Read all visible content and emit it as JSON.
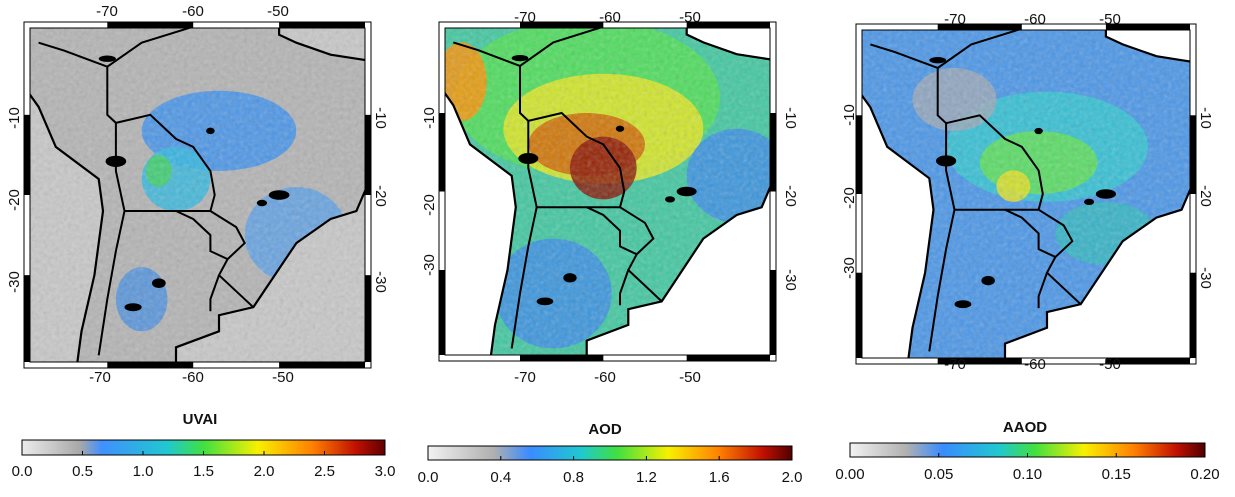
{
  "panels": [
    {
      "title": "UVAI",
      "lon_labels": [
        "-70",
        "-60",
        "-50"
      ],
      "lat_labels": [
        "-10",
        "-20",
        "-30"
      ],
      "colorbar_ticks": [
        "0.0",
        "0.5",
        "1.0",
        "1.5",
        "2.0",
        "2.5",
        "3.0"
      ]
    },
    {
      "title": "AOD",
      "lon_labels": [
        "-70",
        "-60",
        "-50"
      ],
      "lat_labels": [
        "-10",
        "-20",
        "-30"
      ],
      "colorbar_ticks": [
        "0.0",
        "0.4",
        "0.8",
        "1.2",
        "1.6",
        "2.0"
      ]
    },
    {
      "title": "AAOD",
      "lon_labels": [
        "-70",
        "-60",
        "-50"
      ],
      "lat_labels": [
        "-10",
        "-20",
        "-30"
      ],
      "colorbar_ticks": [
        "0.00",
        "0.05",
        "0.10",
        "0.15",
        "0.20"
      ]
    }
  ]
}
